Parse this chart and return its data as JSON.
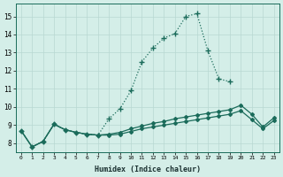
{
  "xlabel": "Humidex (Indice chaleur)",
  "bg_color": "#d4eee8",
  "grid_color": "#b8d8d2",
  "line_color": "#1a6b5a",
  "xlim": [
    -0.5,
    23.5
  ],
  "ylim": [
    7.5,
    15.7
  ],
  "xticks": [
    0,
    1,
    2,
    3,
    4,
    5,
    6,
    7,
    8,
    9,
    10,
    11,
    12,
    13,
    14,
    15,
    16,
    17,
    18,
    19,
    20,
    21,
    22,
    23
  ],
  "yticks": [
    8,
    9,
    10,
    11,
    12,
    13,
    14,
    15
  ],
  "line1_x": [
    0,
    1,
    2,
    3,
    4,
    5,
    6,
    7,
    8,
    9,
    10,
    11,
    12,
    13,
    14,
    15,
    16,
    17,
    18,
    19,
    20,
    21,
    22,
    23
  ],
  "line1_y": [
    8.7,
    7.8,
    8.1,
    9.05,
    8.75,
    8.6,
    8.5,
    8.45,
    9.35,
    9.9,
    10.9,
    12.5,
    13.25,
    13.8,
    14.05,
    15.0,
    15.15,
    13.1,
    11.55,
    11.4,
    null,
    null,
    null,
    null
  ],
  "line2_x": [
    0,
    1,
    2,
    3,
    4,
    5,
    6,
    7,
    8,
    9,
    10,
    11,
    12,
    13,
    14,
    15,
    16,
    17,
    18,
    19,
    20,
    21,
    22,
    23
  ],
  "line2_y": [
    8.7,
    7.8,
    8.1,
    9.05,
    8.75,
    8.6,
    8.5,
    8.45,
    8.5,
    8.6,
    8.8,
    8.95,
    9.1,
    9.2,
    9.35,
    9.45,
    9.55,
    9.65,
    9.75,
    9.85,
    10.1,
    9.6,
    8.9,
    9.4
  ],
  "line3_x": [
    0,
    1,
    2,
    3,
    4,
    5,
    6,
    7,
    8,
    9,
    10,
    11,
    12,
    13,
    14,
    15,
    16,
    17,
    18,
    19,
    20,
    21,
    22,
    23
  ],
  "line3_y": [
    8.7,
    7.8,
    8.1,
    9.05,
    8.75,
    8.6,
    8.5,
    8.45,
    8.45,
    8.5,
    8.65,
    8.8,
    8.9,
    9.0,
    9.1,
    9.2,
    9.3,
    9.4,
    9.5,
    9.6,
    9.8,
    9.3,
    8.8,
    9.25
  ],
  "marker_size": 2.5,
  "line_width": 0.9
}
